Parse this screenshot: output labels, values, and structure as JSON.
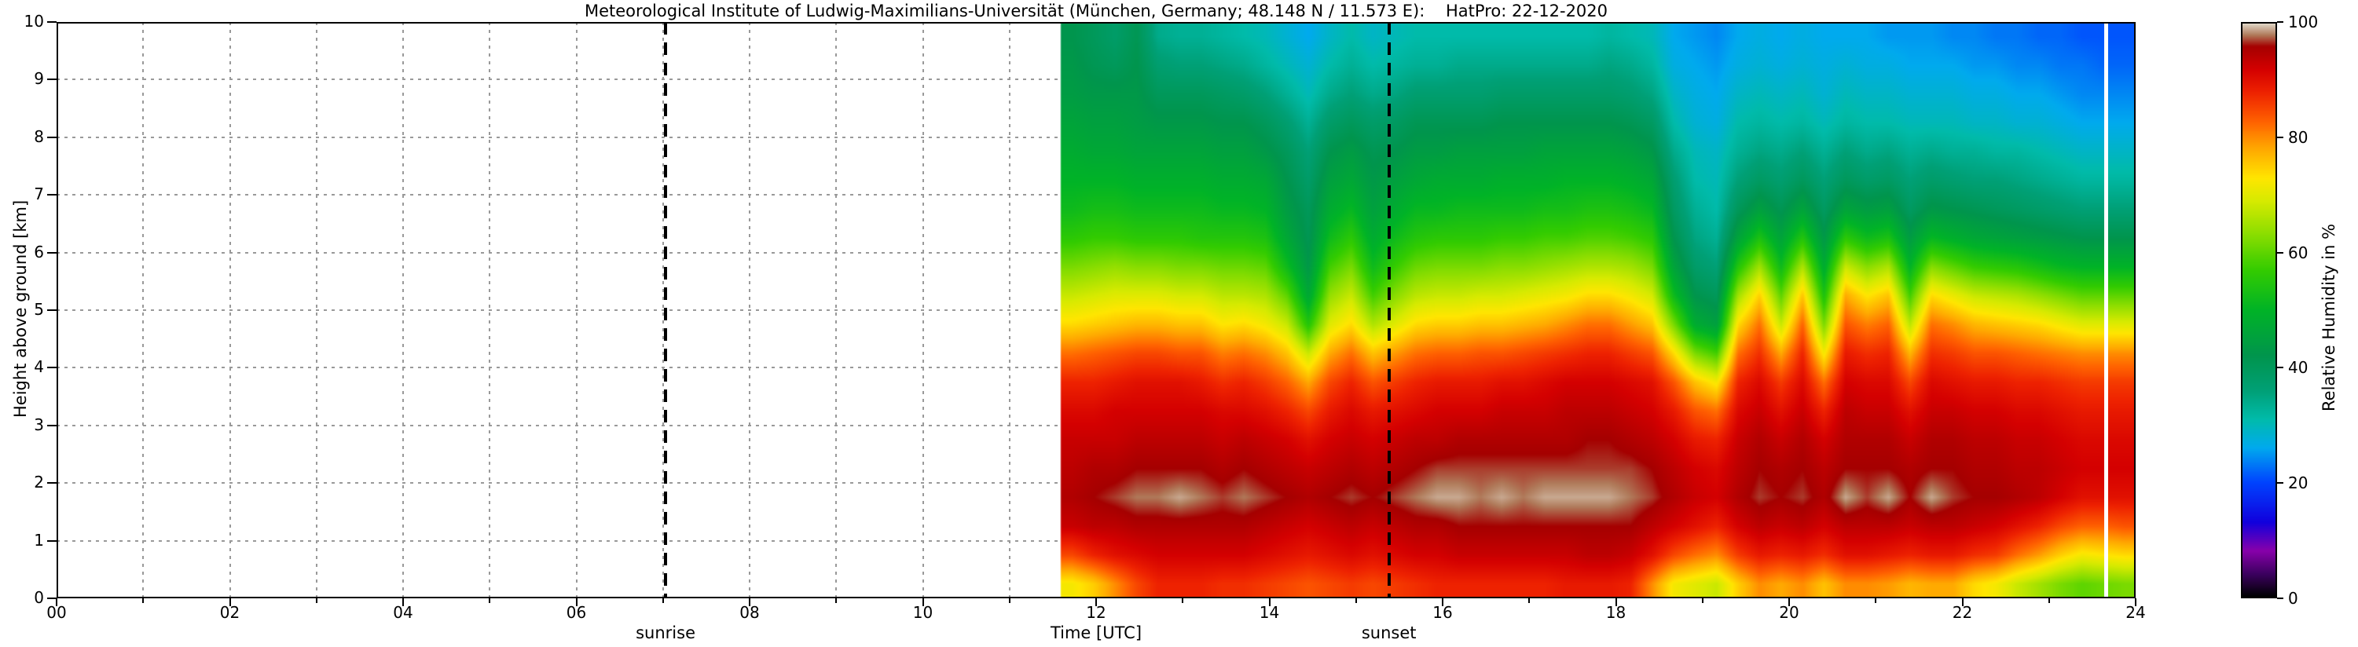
{
  "title": "Meteorological Institute of Ludwig-Maximilians-Universität (München, Germany; 48.148 N / 11.573 E):    HatPro: 22-12-2020",
  "axes": {
    "x": {
      "label": "Time [UTC]",
      "range": [
        0,
        24
      ],
      "major_ticks": [
        {
          "value": 0,
          "label": "00"
        },
        {
          "value": 2,
          "label": "02"
        },
        {
          "value": 4,
          "label": "04"
        },
        {
          "value": 6,
          "label": "06"
        },
        {
          "value": 8,
          "label": "08"
        },
        {
          "value": 10,
          "label": "10"
        },
        {
          "value": 12,
          "label": "12"
        },
        {
          "value": 14,
          "label": "14"
        },
        {
          "value": 16,
          "label": "16"
        },
        {
          "value": 18,
          "label": "18"
        },
        {
          "value": 20,
          "label": "20"
        },
        {
          "value": 22,
          "label": "22"
        },
        {
          "value": 24,
          "label": "24"
        }
      ],
      "minor_tick_step": 1,
      "gridline_step": 1
    },
    "y": {
      "label": "Height above ground [km]",
      "range": [
        0,
        10
      ],
      "major_ticks": [
        {
          "value": 0,
          "label": "0"
        },
        {
          "value": 1,
          "label": "1"
        },
        {
          "value": 2,
          "label": "2"
        },
        {
          "value": 3,
          "label": "3"
        },
        {
          "value": 4,
          "label": "4"
        },
        {
          "value": 5,
          "label": "5"
        },
        {
          "value": 6,
          "label": "6"
        },
        {
          "value": 7,
          "label": "7"
        },
        {
          "value": 8,
          "label": "8"
        },
        {
          "value": 9,
          "label": "9"
        },
        {
          "value": 10,
          "label": "10"
        }
      ],
      "gridline_step": 1
    }
  },
  "colorbar": {
    "label": "Relative Humidity in %",
    "range": [
      0,
      100
    ],
    "ticks": [
      {
        "value": 0,
        "label": "0"
      },
      {
        "value": 20,
        "label": "20"
      },
      {
        "value": 40,
        "label": "40"
      },
      {
        "value": 60,
        "label": "60"
      },
      {
        "value": 80,
        "label": "80"
      },
      {
        "value": 100,
        "label": "100"
      }
    ],
    "stops": [
      [
        0,
        "#000000"
      ],
      [
        4,
        "#3c0060"
      ],
      [
        8,
        "#8800aa"
      ],
      [
        13,
        "#1100dd"
      ],
      [
        20,
        "#0044ff"
      ],
      [
        26,
        "#00aaee"
      ],
      [
        31,
        "#00bbaa"
      ],
      [
        36,
        "#00a076"
      ],
      [
        42,
        "#00954d"
      ],
      [
        50,
        "#00b327"
      ],
      [
        57,
        "#33cc00"
      ],
      [
        63,
        "#88dd00"
      ],
      [
        69,
        "#d6ea00"
      ],
      [
        73,
        "#ffe600"
      ],
      [
        78,
        "#ffaa00"
      ],
      [
        83,
        "#ff6000"
      ],
      [
        88,
        "#ee2200"
      ],
      [
        92,
        "#d40000"
      ],
      [
        96,
        "#a50000"
      ],
      [
        98,
        "#b07a5a"
      ],
      [
        100,
        "#e0d8c8"
      ]
    ]
  },
  "annotations": {
    "sunrise": {
      "label": "sunrise",
      "time_utc": 7.03
    },
    "sunset": {
      "label": "sunset",
      "time_utc": 15.38
    },
    "missing_data_stripe": {
      "time_utc": 23.66,
      "width_hours": 0.05
    }
  },
  "chart_data": {
    "type": "heatmap",
    "title": "Meteorological Institute of Ludwig-Maximilians-Universität (München, Germany; 48.148 N / 11.573 E):    HatPro: 22-12-2020",
    "xlabel": "Time [UTC]",
    "ylabel": "Height above ground [km]",
    "zlabel": "Relative Humidity in %",
    "x_range": [
      0,
      24
    ],
    "y_range": [
      0,
      10
    ],
    "z_range": [
      0,
      100
    ],
    "grid": true,
    "legend_position": "right-colorbar",
    "note": "No data before ~11.6 UTC (blank); thin white missing-data stripe near 23.66 UTC; dashed vertical lines mark sunrise (7.03 UTC) and sunset (15.38 UTC).",
    "data_time_start": 11.6,
    "data_time_end": 24.0,
    "height_centers_km": [
      0.25,
      0.75,
      1.25,
      1.75,
      2.25,
      2.75,
      3.25,
      3.75,
      4.25,
      4.75,
      5.25,
      5.75,
      6.25,
      6.75,
      7.25,
      7.75,
      8.25,
      8.75,
      9.25,
      9.75
    ],
    "values": [
      [
        72,
        85,
        93,
        95,
        94,
        93,
        91,
        88,
        82,
        74,
        68,
        62,
        56,
        52,
        50,
        48,
        46,
        44,
        43,
        42
      ],
      [
        75,
        88,
        94,
        96,
        95,
        93,
        91,
        88,
        83,
        75,
        69,
        63,
        57,
        53,
        50,
        47,
        45,
        43,
        41,
        40
      ],
      [
        80,
        90,
        94,
        97,
        95,
        93,
        92,
        89,
        84,
        76,
        70,
        64,
        57,
        53,
        50,
        47,
        45,
        43,
        40,
        38
      ],
      [
        85,
        91,
        95,
        98,
        96,
        94,
        92,
        90,
        85,
        77,
        70,
        63,
        56,
        52,
        49,
        46,
        44,
        43,
        42,
        41
      ],
      [
        88,
        92,
        95,
        98,
        96,
        94,
        92,
        90,
        85,
        77,
        70,
        63,
        56,
        52,
        49,
        46,
        43,
        40,
        37,
        34
      ],
      [
        88,
        92,
        95,
        99,
        96,
        94,
        92,
        90,
        84,
        76,
        69,
        62,
        56,
        52,
        49,
        46,
        43,
        40,
        36,
        33
      ],
      [
        88,
        92,
        95,
        98,
        96,
        94,
        92,
        89,
        84,
        76,
        69,
        62,
        55,
        52,
        49,
        46,
        43,
        40,
        36,
        33
      ],
      [
        87,
        92,
        95,
        97,
        95,
        93,
        91,
        87,
        81,
        73,
        67,
        61,
        55,
        51,
        48,
        45,
        42,
        39,
        35,
        32
      ],
      [
        87,
        92,
        95,
        98,
        96,
        94,
        91,
        88,
        82,
        74,
        67,
        61,
        55,
        51,
        48,
        45,
        42,
        38,
        34,
        31
      ],
      [
        86,
        91,
        94,
        97,
        95,
        93,
        90,
        86,
        80,
        72,
        66,
        60,
        54,
        50,
        47,
        43,
        40,
        36,
        32,
        30
      ],
      [
        85,
        90,
        93,
        96,
        94,
        92,
        88,
        83,
        76,
        68,
        60,
        52,
        47,
        44,
        42,
        40,
        37,
        33,
        30,
        28
      ],
      [
        84,
        89,
        92,
        95,
        93,
        90,
        85,
        78,
        68,
        55,
        47,
        43,
        41,
        40,
        38,
        36,
        33,
        30,
        28,
        26
      ],
      [
        85,
        90,
        93,
        96,
        94,
        92,
        89,
        85,
        78,
        70,
        64,
        58,
        52,
        48,
        45,
        42,
        38,
        34,
        31,
        29
      ],
      [
        86,
        91,
        94,
        97,
        95,
        93,
        91,
        88,
        82,
        74,
        68,
        62,
        56,
        51,
        47,
        44,
        40,
        36,
        33,
        31
      ],
      [
        85,
        90,
        93,
        96,
        94,
        92,
        89,
        84,
        76,
        66,
        58,
        52,
        48,
        45,
        43,
        41,
        38,
        34,
        31,
        29
      ],
      [
        86,
        91,
        94,
        97,
        95,
        93,
        90,
        86,
        79,
        70,
        63,
        57,
        52,
        48,
        45,
        42,
        39,
        35,
        32,
        30
      ],
      [
        87,
        92,
        95,
        98,
        96,
        94,
        91,
        88,
        82,
        74,
        67,
        61,
        55,
        51,
        47,
        44,
        41,
        37,
        33,
        31
      ],
      [
        88,
        92,
        95,
        99,
        97,
        94,
        92,
        89,
        83,
        75,
        68,
        62,
        56,
        51,
        48,
        44,
        41,
        37,
        33,
        31
      ],
      [
        88,
        93,
        96,
        99,
        97,
        95,
        92,
        89,
        83,
        75,
        68,
        62,
        56,
        52,
        48,
        45,
        41,
        37,
        34,
        31
      ],
      [
        88,
        93,
        96,
        98,
        97,
        95,
        92,
        89,
        84,
        76,
        69,
        62,
        56,
        52,
        48,
        45,
        41,
        37,
        34,
        31
      ],
      [
        88,
        93,
        96,
        99,
        97,
        95,
        93,
        90,
        84,
        76,
        69,
        63,
        57,
        52,
        49,
        45,
        42,
        38,
        34,
        31
      ],
      [
        88,
        93,
        96,
        98,
        97,
        95,
        93,
        90,
        85,
        77,
        70,
        63,
        57,
        52,
        49,
        45,
        42,
        38,
        34,
        31
      ],
      [
        88,
        93,
        96,
        99,
        97,
        95,
        93,
        91,
        86,
        78,
        71,
        64,
        58,
        53,
        49,
        46,
        42,
        38,
        34,
        31
      ],
      [
        89,
        93,
        96,
        99,
        97,
        95,
        94,
        92,
        87,
        80,
        72,
        65,
        58,
        53,
        50,
        46,
        42,
        38,
        34,
        31
      ],
      [
        89,
        94,
        96,
        99,
        97,
        96,
        94,
        92,
        88,
        82,
        74,
        66,
        59,
        54,
        50,
        46,
        42,
        38,
        34,
        31
      ],
      [
        89,
        94,
        96,
        99,
        97,
        96,
        94,
        92,
        88,
        82,
        74,
        66,
        59,
        54,
        50,
        46,
        42,
        38,
        35,
        32
      ],
      [
        88,
        93,
        96,
        98,
        97,
        95,
        93,
        91,
        86,
        79,
        72,
        65,
        58,
        53,
        49,
        45,
        41,
        37,
        34,
        31
      ],
      [
        80,
        90,
        94,
        97,
        96,
        94,
        92,
        90,
        84,
        76,
        69,
        62,
        56,
        51,
        47,
        43,
        39,
        35,
        32,
        30
      ],
      [
        72,
        85,
        92,
        95,
        94,
        92,
        89,
        84,
        74,
        62,
        52,
        46,
        42,
        39,
        37,
        34,
        31,
        29,
        27,
        26
      ],
      [
        70,
        82,
        90,
        93,
        92,
        89,
        84,
        76,
        62,
        48,
        42,
        38,
        35,
        33,
        31,
        30,
        28,
        27,
        26,
        25
      ],
      [
        68,
        80,
        88,
        92,
        91,
        88,
        82,
        72,
        58,
        45,
        40,
        36,
        33,
        31,
        30,
        29,
        27,
        26,
        25,
        24
      ],
      [
        75,
        86,
        92,
        95,
        94,
        93,
        91,
        88,
        82,
        74,
        65,
        55,
        46,
        40,
        36,
        33,
        31,
        29,
        27,
        26
      ],
      [
        80,
        89,
        94,
        97,
        96,
        95,
        93,
        91,
        87,
        82,
        75,
        65,
        54,
        45,
        39,
        35,
        32,
        30,
        28,
        27
      ],
      [
        78,
        88,
        93,
        96,
        95,
        93,
        90,
        86,
        78,
        68,
        60,
        52,
        46,
        41,
        37,
        34,
        31,
        29,
        27,
        26
      ],
      [
        80,
        89,
        94,
        97,
        96,
        95,
        93,
        91,
        88,
        83,
        76,
        66,
        55,
        46,
        40,
        36,
        32,
        30,
        28,
        27
      ],
      [
        76,
        87,
        92,
        95,
        94,
        92,
        88,
        82,
        72,
        62,
        54,
        48,
        43,
        39,
        36,
        33,
        30,
        28,
        27,
        26
      ],
      [
        80,
        90,
        94,
        99,
        96,
        95,
        94,
        92,
        89,
        84,
        78,
        68,
        56,
        46,
        40,
        36,
        32,
        30,
        28,
        26
      ],
      [
        80,
        90,
        94,
        97,
        96,
        95,
        93,
        91,
        87,
        81,
        73,
        63,
        52,
        44,
        38,
        34,
        31,
        29,
        27,
        26
      ],
      [
        79,
        89,
        94,
        99,
        96,
        95,
        93,
        91,
        88,
        83,
        76,
        66,
        54,
        45,
        39,
        35,
        31,
        29,
        27,
        25
      ],
      [
        77,
        88,
        93,
        96,
        95,
        93,
        90,
        85,
        77,
        67,
        58,
        50,
        44,
        39,
        36,
        33,
        30,
        28,
        26,
        25
      ],
      [
        78,
        89,
        94,
        99,
        96,
        95,
        93,
        91,
        87,
        82,
        74,
        63,
        51,
        43,
        38,
        34,
        30,
        28,
        26,
        25
      ],
      [
        78,
        89,
        94,
        97,
        96,
        95,
        93,
        90,
        86,
        80,
        71,
        60,
        49,
        42,
        37,
        33,
        30,
        28,
        26,
        24
      ],
      [
        74,
        87,
        93,
        96,
        95,
        94,
        92,
        89,
        84,
        77,
        68,
        57,
        47,
        41,
        36,
        33,
        29,
        27,
        25,
        24
      ],
      [
        72,
        86,
        92,
        96,
        95,
        94,
        92,
        89,
        84,
        76,
        67,
        56,
        46,
        40,
        36,
        32,
        29,
        27,
        25,
        23
      ],
      [
        68,
        82,
        90,
        95,
        94,
        93,
        91,
        88,
        83,
        75,
        66,
        55,
        45,
        39,
        35,
        32,
        28,
        26,
        24,
        23
      ],
      [
        65,
        79,
        88,
        94,
        94,
        93,
        91,
        88,
        82,
        74,
        64,
        53,
        44,
        38,
        34,
        31,
        28,
        26,
        24,
        22
      ],
      [
        62,
        75,
        85,
        92,
        93,
        92,
        90,
        87,
        81,
        72,
        62,
        51,
        43,
        37,
        33,
        30,
        27,
        25,
        23,
        22
      ],
      [
        60,
        72,
        83,
        90,
        92,
        91,
        89,
        86,
        80,
        70,
        60,
        50,
        42,
        36,
        32,
        29,
        26,
        24,
        23,
        21
      ],
      [
        61,
        73,
        83,
        90,
        92,
        91,
        89,
        86,
        80,
        70,
        60,
        50,
        42,
        36,
        32,
        29,
        26,
        24,
        22,
        21
      ],
      [
        62,
        74,
        84,
        90,
        92,
        91,
        89,
        86,
        80,
        70,
        60,
        50,
        42,
        36,
        32,
        29,
        26,
        24,
        22,
        21
      ]
    ]
  }
}
